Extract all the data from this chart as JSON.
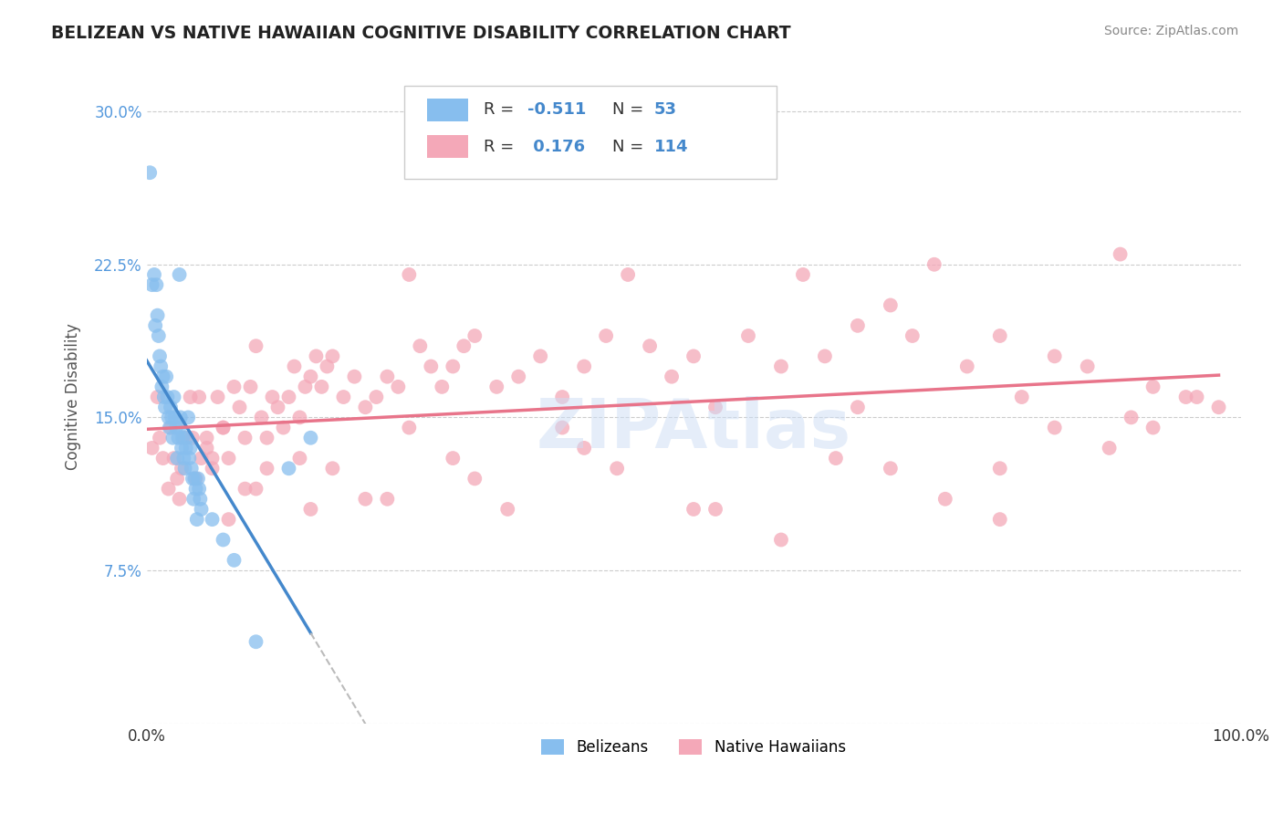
{
  "title": "BELIZEAN VS NATIVE HAWAIIAN COGNITIVE DISABILITY CORRELATION CHART",
  "source": "Source: ZipAtlas.com",
  "ylabel": "Cognitive Disability",
  "xlim": [
    0,
    100
  ],
  "ylim": [
    0,
    32
  ],
  "yticks": [
    0,
    7.5,
    15.0,
    22.5,
    30.0
  ],
  "ytick_labels": [
    "",
    "7.5%",
    "15.0%",
    "22.5%",
    "30.0%"
  ],
  "belizean_color": "#87BEEE",
  "hawaiian_color": "#F4A8B8",
  "belizean_R": -0.511,
  "belizean_N": 53,
  "hawaiian_R": 0.176,
  "hawaiian_N": 114,
  "legend_label_1": "Belizeans",
  "legend_label_2": "Native Hawaiians",
  "background_color": "#ffffff",
  "grid_color": "#cccccc",
  "trend_blue_color": "#4488CC",
  "trend_pink_color": "#E8748A",
  "trend_dash_color": "#bbbbbb",
  "belizean_points_x": [
    0.3,
    0.5,
    0.7,
    0.8,
    0.9,
    1.0,
    1.1,
    1.2,
    1.3,
    1.4,
    1.5,
    1.6,
    1.7,
    1.8,
    1.9,
    2.0,
    2.1,
    2.2,
    2.3,
    2.4,
    2.5,
    2.6,
    2.7,
    2.8,
    2.9,
    3.0,
    3.1,
    3.2,
    3.3,
    3.4,
    3.5,
    3.6,
    3.7,
    3.8,
    3.9,
    4.0,
    4.1,
    4.2,
    4.3,
    4.4,
    4.5,
    4.6,
    4.7,
    4.8,
    4.9,
    5.0,
    6.0,
    7.0,
    8.0,
    10.0,
    13.0,
    15.0,
    3.0
  ],
  "belizean_points_y": [
    27.0,
    21.5,
    22.0,
    19.5,
    21.5,
    20.0,
    19.0,
    18.0,
    17.5,
    16.5,
    17.0,
    16.0,
    15.5,
    17.0,
    16.0,
    15.0,
    14.5,
    15.5,
    15.0,
    14.0,
    16.0,
    15.0,
    14.5,
    13.0,
    14.0,
    14.5,
    15.0,
    13.5,
    14.0,
    13.0,
    12.5,
    13.5,
    14.0,
    15.0,
    13.0,
    13.5,
    12.5,
    12.0,
    11.0,
    12.0,
    11.5,
    10.0,
    12.0,
    11.5,
    11.0,
    10.5,
    10.0,
    9.0,
    8.0,
    4.0,
    12.5,
    14.0,
    22.0
  ],
  "hawaiian_points_x": [
    0.5,
    1.0,
    1.5,
    2.0,
    2.5,
    3.0,
    3.5,
    4.0,
    4.5,
    5.0,
    5.5,
    6.0,
    6.5,
    7.0,
    7.5,
    8.0,
    8.5,
    9.0,
    9.5,
    10.0,
    10.5,
    11.0,
    11.5,
    12.0,
    12.5,
    13.0,
    13.5,
    14.0,
    14.5,
    15.0,
    15.5,
    16.0,
    16.5,
    17.0,
    18.0,
    19.0,
    20.0,
    21.0,
    22.0,
    23.0,
    24.0,
    25.0,
    26.0,
    27.0,
    28.0,
    29.0,
    30.0,
    32.0,
    34.0,
    36.0,
    38.0,
    40.0,
    42.0,
    44.0,
    46.0,
    48.0,
    50.0,
    52.0,
    55.0,
    58.0,
    60.0,
    62.0,
    65.0,
    68.0,
    70.0,
    72.0,
    75.0,
    78.0,
    80.0,
    83.0,
    86.0,
    89.0,
    92.0,
    95.0,
    98.0,
    1.2,
    2.2,
    3.2,
    4.2,
    5.5,
    7.0,
    9.0,
    11.0,
    14.0,
    17.0,
    20.0,
    24.0,
    28.0,
    33.0,
    38.0,
    43.0,
    50.0,
    58.0,
    63.0,
    68.0,
    73.0,
    78.0,
    83.0,
    88.0,
    92.0,
    96.0,
    6.0,
    10.0,
    15.0,
    22.0,
    30.0,
    40.0,
    52.0,
    65.0,
    78.0,
    90.0,
    2.8,
    4.8,
    7.5
  ],
  "hawaiian_points_y": [
    13.5,
    16.0,
    13.0,
    11.5,
    13.0,
    11.0,
    14.0,
    16.0,
    12.0,
    13.0,
    14.0,
    12.5,
    16.0,
    14.5,
    13.0,
    16.5,
    15.5,
    14.0,
    16.5,
    18.5,
    15.0,
    14.0,
    16.0,
    15.5,
    14.5,
    16.0,
    17.5,
    15.0,
    16.5,
    17.0,
    18.0,
    16.5,
    17.5,
    18.0,
    16.0,
    17.0,
    15.5,
    16.0,
    17.0,
    16.5,
    22.0,
    18.5,
    17.5,
    16.5,
    17.5,
    18.5,
    19.0,
    16.5,
    17.0,
    18.0,
    16.0,
    17.5,
    19.0,
    22.0,
    18.5,
    17.0,
    18.0,
    15.5,
    19.0,
    17.5,
    22.0,
    18.0,
    19.5,
    20.5,
    19.0,
    22.5,
    17.5,
    19.0,
    16.0,
    18.0,
    17.5,
    23.0,
    14.5,
    16.0,
    15.5,
    14.0,
    14.5,
    12.5,
    14.0,
    13.5,
    14.5,
    11.5,
    12.5,
    13.0,
    12.5,
    11.0,
    14.5,
    13.0,
    10.5,
    14.5,
    12.5,
    10.5,
    9.0,
    13.0,
    12.5,
    11.0,
    10.0,
    14.5,
    13.5,
    16.5,
    16.0,
    13.0,
    11.5,
    10.5,
    11.0,
    12.0,
    13.5,
    10.5,
    15.5,
    12.5,
    15.0,
    12.0,
    16.0,
    10.0
  ]
}
